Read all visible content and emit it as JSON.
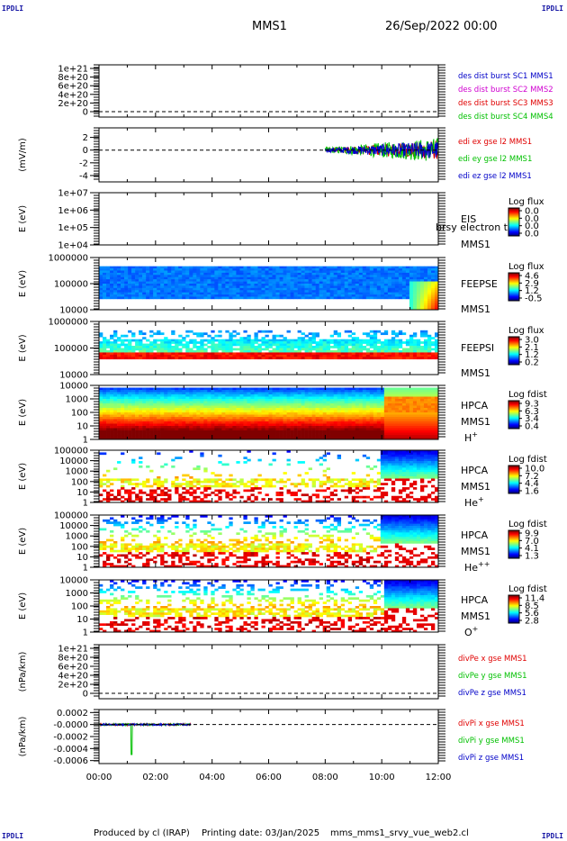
{
  "header": {
    "corner_tag": "IPDLI",
    "spacecraft": "MMS1",
    "date": "26/Sep/2022 00:00"
  },
  "footer": {
    "produced_by": "Produced by cl (IRAP)",
    "printing_date": "Printing date: 03/Jan/2025",
    "file_name": "mms_mms1_srvy_vue_web2.cl"
  },
  "colors": {
    "red": "#e00000",
    "green": "#00c000",
    "blue": "#0000c8",
    "magenta": "#d000d0",
    "dashed_line": "#000000"
  },
  "chart_data": {
    "type": "multi-panel",
    "xaxis": {
      "range": [
        "00:00",
        "12:00"
      ],
      "ticks": [
        "00:00",
        "02:00",
        "04:00",
        "06:00",
        "08:00",
        "10:00",
        "12:00"
      ]
    },
    "panels": [
      {
        "id": "des-dist",
        "type": "line",
        "ylabel": "",
        "yticks": [
          "1e+21",
          "8e+20",
          "6e+20",
          "4e+20",
          "2e+20",
          "0"
        ],
        "legend": [
          "des dist burst SC1 MMS1",
          "des dist burst SC2 MMS2",
          "des dist burst SC3 MMS3",
          "des dist burst SC4 MMS4"
        ],
        "legend_colors": [
          "#0000c8",
          "#d000d0",
          "#e00000",
          "#00c000"
        ],
        "zero_line": true
      },
      {
        "id": "edi-e",
        "type": "line",
        "ylabel": "(mV/m)",
        "yticks": [
          "2",
          "0",
          "-2",
          "-4"
        ],
        "ylim": [
          -5,
          3.5
        ],
        "legend": [
          "edi ex gse l2 MMS1",
          "edi ey gse l2 MMS1",
          "edi ez gse l2 MMS1"
        ],
        "legend_colors": [
          "#e00000",
          "#00c000",
          "#0000c8"
        ],
        "zero_line": true,
        "data_range_hours": [
          8.0,
          12.0
        ]
      },
      {
        "id": "eis",
        "type": "heatmap",
        "ylabel": "E (eV)",
        "yticks": [
          "1e+07",
          "1e+06",
          "1e+05",
          "1e+04"
        ],
        "label_lines": [
          "EIS",
          "MMS1"
        ],
        "overlay_text": "brsy electron to",
        "colorbar": {
          "title": "Log flux",
          "ticks": [
            "0.0",
            "0.0",
            "0.0",
            "0.0"
          ]
        }
      },
      {
        "id": "feeps-e",
        "type": "heatmap",
        "ylabel": "E (eV)",
        "yticks": [
          "1000000",
          "100000",
          "10000"
        ],
        "label_lines": [
          "FEEPSE",
          "MMS1"
        ],
        "colorbar": {
          "title": "Log flux",
          "ticks": [
            "4.6",
            "2.9",
            "1.2",
            "-0.5"
          ]
        }
      },
      {
        "id": "feeps-i",
        "type": "heatmap",
        "ylabel": "E (eV)",
        "yticks": [
          "1000000",
          "100000",
          "10000"
        ],
        "label_lines": [
          "FEEPSI",
          "MMS1"
        ],
        "colorbar": {
          "title": "Log flux",
          "ticks": [
            "3.0",
            "2.1",
            "1.2",
            "0.2"
          ]
        }
      },
      {
        "id": "hpca-h",
        "type": "heatmap",
        "ylabel": "E (eV)",
        "yticks": [
          "10000",
          "1000",
          "100",
          "10",
          "1"
        ],
        "label_lines": [
          "HPCA",
          "MMS1"
        ],
        "species": "H",
        "species_sup": "+",
        "colorbar": {
          "title": "Log fdist",
          "ticks": [
            "9.3",
            "6.3",
            "3.4",
            "0.4"
          ]
        }
      },
      {
        "id": "hpca-he",
        "type": "heatmap",
        "ylabel": "E (eV)",
        "yticks": [
          "100000",
          "10000",
          "1000",
          "100",
          "10",
          "1"
        ],
        "label_lines": [
          "HPCA",
          "MMS1"
        ],
        "species": "He",
        "species_sup": "+",
        "colorbar": {
          "title": "Log fdist",
          "ticks": [
            "10.0",
            "7.2",
            "4.4",
            "1.6"
          ]
        }
      },
      {
        "id": "hpca-he2",
        "type": "heatmap",
        "ylabel": "E (eV)",
        "yticks": [
          "100000",
          "10000",
          "1000",
          "100",
          "10",
          "1"
        ],
        "label_lines": [
          "HPCA",
          "MMS1"
        ],
        "species": "He",
        "species_sup": "++",
        "colorbar": {
          "title": "Log fdist",
          "ticks": [
            "9.9",
            "7.0",
            "4.1",
            "1.3"
          ]
        }
      },
      {
        "id": "hpca-o",
        "type": "heatmap",
        "ylabel": "E (eV)",
        "yticks": [
          "10000",
          "1000",
          "100",
          "10",
          "1"
        ],
        "label_lines": [
          "HPCA",
          "MMS1"
        ],
        "species": "O",
        "species_sup": "+",
        "colorbar": {
          "title": "Log fdist",
          "ticks": [
            "11.4",
            "8.5",
            "5.6",
            "2.8"
          ]
        }
      },
      {
        "id": "divpe",
        "type": "line",
        "ylabel": "(nPa/km)",
        "yticks": [
          "1e+21",
          "8e+20",
          "6e+20",
          "4e+20",
          "2e+20",
          "0"
        ],
        "legend": [
          "divPe x gse MMS1",
          "divPe y gse MMS1",
          "divPe z gse MMS1"
        ],
        "legend_colors": [
          "#e00000",
          "#00c000",
          "#0000c8"
        ],
        "zero_line": true
      },
      {
        "id": "divpi",
        "type": "line",
        "ylabel": "(nPa/km)",
        "yticks": [
          "0.0002",
          "-0.0000",
          "-0.0002",
          "-0.0004",
          "-0.0006"
        ],
        "ylim": [
          -0.00065,
          0.00025
        ],
        "legend": [
          "divPi x gse MMS1",
          "divPi y gse MMS1",
          "divPi z gse MMS1"
        ],
        "legend_colors": [
          "#e00000",
          "#00c000",
          "#0000c8"
        ],
        "zero_line": true,
        "data_range_hours": [
          0.0,
          3.25
        ]
      }
    ]
  }
}
